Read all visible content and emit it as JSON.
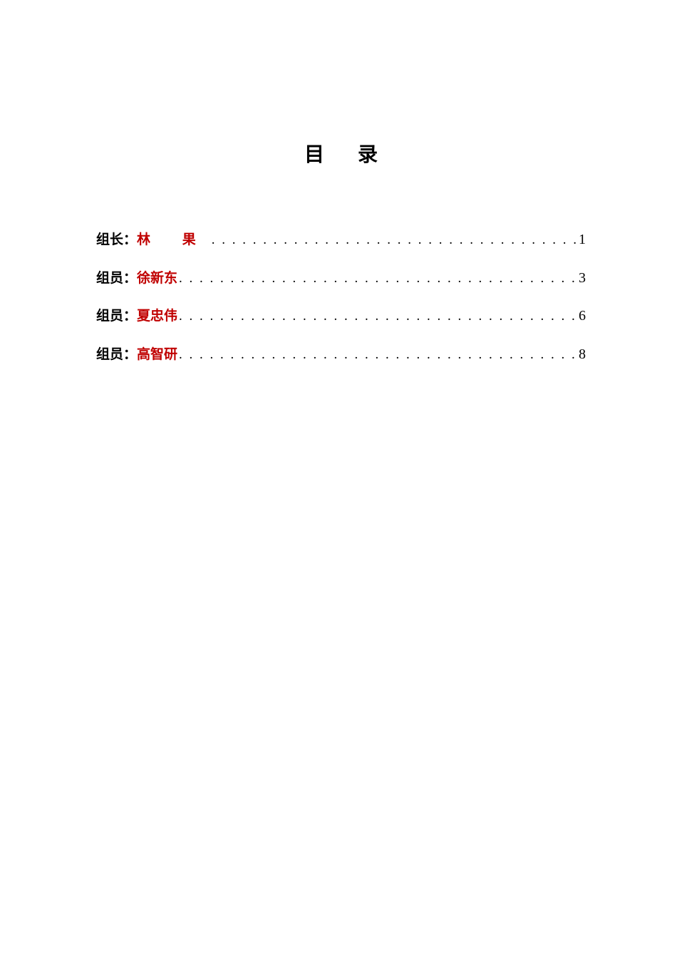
{
  "title": "目 录",
  "colors": {
    "name_color": "#c00000",
    "text_color": "#000000",
    "background": "#ffffff"
  },
  "typography": {
    "title_fontsize": 28,
    "entry_fontsize": 19,
    "title_weight": "bold",
    "entry_weight": "bold",
    "font_family": "SimSun"
  },
  "entries": [
    {
      "role": "组长：",
      "name": "林 果",
      "name_spaced": true,
      "page": "1"
    },
    {
      "role": "组员：",
      "name": "徐新东",
      "name_spaced": false,
      "page": "3"
    },
    {
      "role": "组员：",
      "name": "夏忠伟",
      "name_spaced": false,
      "page": "6"
    },
    {
      "role": "组员：",
      "name": "高智研",
      "name_spaced": false,
      "page": "8"
    }
  ],
  "dot_leader": ". . . . . . . . . . . . . . . . . . . . . . . . . . . . . . . . . . . . . . . . . . . . . . . . . . . . . . . . . . . . . . . . . . . . . . . . . . . . . . . ."
}
